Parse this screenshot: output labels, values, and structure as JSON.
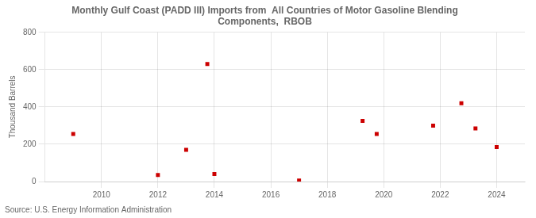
{
  "chart_data": {
    "type": "scatter",
    "title": "Monthly Gulf Coast (PADD III) Imports from  All Countries of Motor Gasoline Blending\nComponents,  RBOB",
    "y_label": "Thousand Barrels",
    "annotations": [
      "Source: U.S. Energy Information Administration"
    ],
    "x": [
      2009.0,
      2012.0,
      2013.0,
      2013.75,
      2014.0,
      2017.0,
      2019.25,
      2019.75,
      2021.75,
      2022.75,
      2023.25,
      2024.0
    ],
    "values": [
      255,
      35,
      170,
      630,
      40,
      5,
      325,
      255,
      300,
      420,
      285,
      185
    ],
    "color": "#cc0000",
    "marker": "square",
    "xlim": [
      2008.0,
      2025.0
    ],
    "xticks": [
      2010,
      2012,
      2014,
      2016,
      2018,
      2020,
      2022,
      2024
    ],
    "ylim": [
      0,
      800
    ],
    "yticks": [
      0,
      200,
      400,
      600,
      800
    ],
    "grid": true
  }
}
